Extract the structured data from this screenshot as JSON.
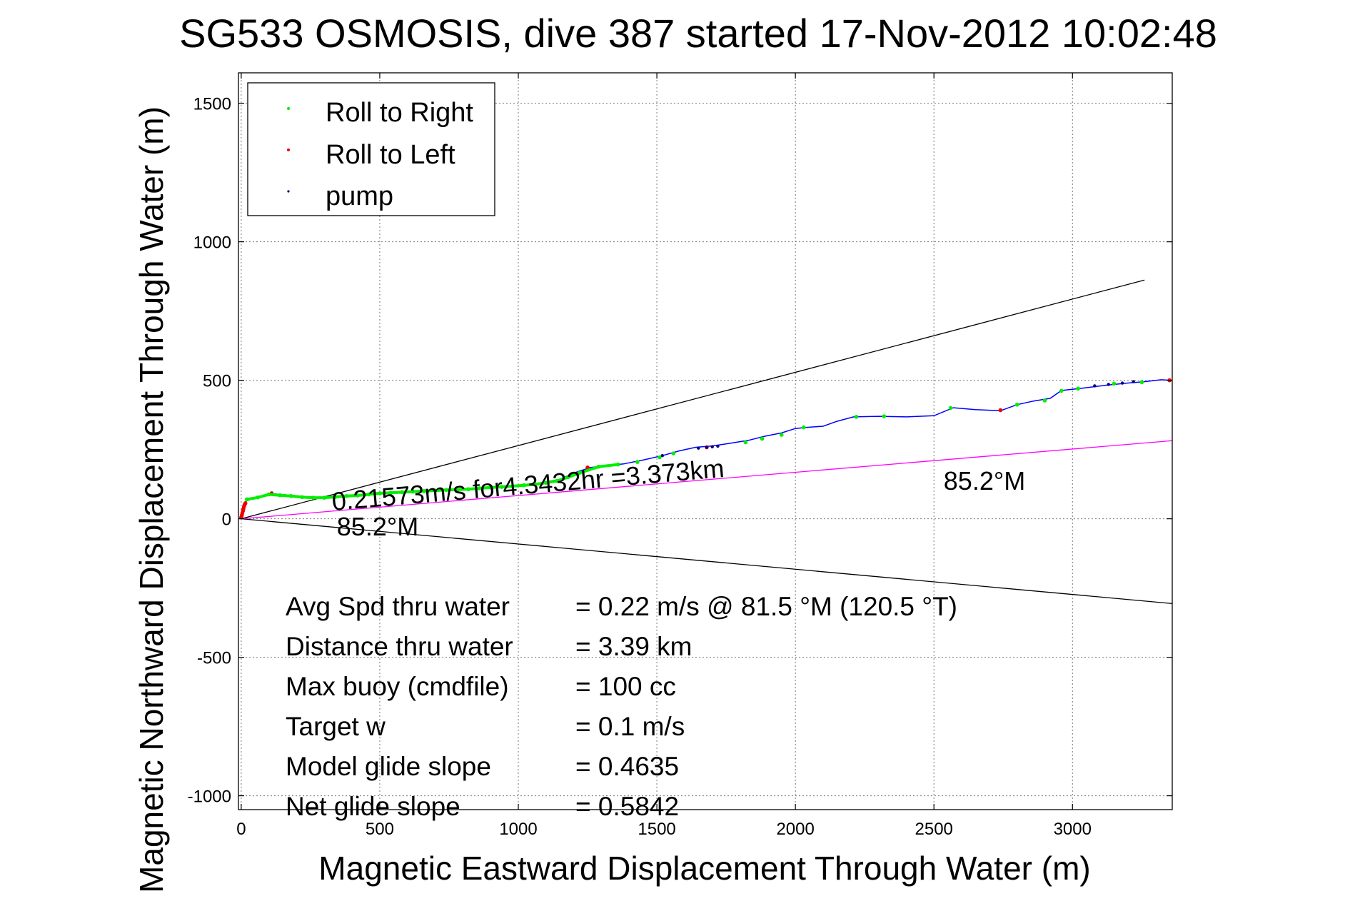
{
  "chart_data": {
    "type": "scatter",
    "title": "SG533 OSMOSIS, dive 387 started 17-Nov-2012 10:02:48",
    "xlabel": "Magnetic Eastward Displacement Through Water (m)",
    "ylabel": "Magnetic Northward Displacement Through Water (m)",
    "xlim": [
      -10,
      3360
    ],
    "ylim": [
      -1050,
      1610
    ],
    "xticks": [
      0,
      500,
      1000,
      1500,
      2000,
      2500,
      3000
    ],
    "yticks": [
      -1000,
      -500,
      0,
      500,
      1000,
      1500
    ],
    "grid": true,
    "legend_position": "top-left",
    "legend": [
      {
        "label": "Roll to Right",
        "color": "#00ee00"
      },
      {
        "label": "Roll to Left",
        "color": "#ee0000"
      },
      {
        "label": "pump",
        "color": "#000080"
      }
    ],
    "series": [
      {
        "name": "track",
        "color": "#0000ff",
        "x": [
          0,
          5,
          10,
          20,
          40,
          80,
          120,
          180,
          250,
          300,
          350,
          420,
          500,
          560,
          620,
          700,
          780,
          850,
          950,
          1050,
          1150,
          1200,
          1260,
          1320,
          1380,
          1450,
          1520,
          1580,
          1640,
          1700,
          1760,
          1830,
          1890,
          1950,
          2000,
          2040,
          2100,
          2150,
          2210,
          2300,
          2400,
          2500,
          2570,
          2650,
          2740,
          2800,
          2860,
          2920,
          2960,
          3040,
          3120,
          3200,
          3260,
          3320,
          3350
        ],
        "y": [
          0,
          40,
          55,
          65,
          72,
          80,
          90,
          85,
          78,
          75,
          80,
          85,
          92,
          95,
          98,
          102,
          105,
          110,
          116,
          125,
          142,
          165,
          185,
          192,
          198,
          212,
          228,
          245,
          258,
          263,
          272,
          283,
          298,
          310,
          326,
          330,
          334,
          352,
          368,
          370,
          368,
          372,
          401,
          394,
          390,
          412,
          425,
          435,
          463,
          472,
          482,
          490,
          495,
          502,
          500
        ]
      },
      {
        "name": "Roll to Right",
        "color": "#00ee00",
        "x": [
          20,
          60,
          100,
          140,
          180,
          220,
          260,
          300,
          340,
          380,
          420,
          460,
          500,
          540,
          580,
          620,
          660,
          700,
          740,
          780,
          820,
          860,
          900,
          940,
          980,
          1020,
          1060,
          1100,
          1140,
          1180,
          1220,
          1290,
          1360,
          1430,
          1510,
          1560,
          1820,
          1880,
          1950,
          2030,
          2220,
          2320,
          2560,
          2800,
          2900,
          2960,
          3020,
          3150,
          3250
        ],
        "y": [
          70,
          77,
          88,
          85,
          82,
          78,
          76,
          76,
          79,
          82,
          84,
          88,
          92,
          94,
          96,
          98,
          100,
          102,
          104,
          105,
          107,
          110,
          113,
          115,
          118,
          121,
          124,
          130,
          137,
          150,
          165,
          188,
          196,
          205,
          222,
          236,
          276,
          289,
          303,
          330,
          368,
          370,
          400,
          412,
          427,
          462,
          470,
          488,
          493
        ]
      },
      {
        "name": "Roll to Left",
        "color": "#ee0000",
        "x": [
          0,
          2,
          4,
          6,
          8,
          10,
          12,
          15,
          110,
          1250,
          1680,
          2740,
          3350
        ],
        "y": [
          5,
          12,
          20,
          28,
          36,
          44,
          50,
          56,
          92,
          185,
          258,
          392,
          500
        ]
      },
      {
        "name": "pump",
        "color": "#000080",
        "x": [
          1520,
          1650,
          1680,
          1700,
          1720,
          3080,
          3130,
          3180,
          3220
        ],
        "y": [
          228,
          255,
          258,
          260,
          262,
          480,
          485,
          490,
          495
        ]
      }
    ],
    "reference_lines": [
      {
        "color": "#000000",
        "x": [
          0,
          3260
        ],
        "y": [
          0,
          862
        ]
      },
      {
        "color": "#000000",
        "x": [
          0,
          3360
        ],
        "y": [
          0,
          -306
        ]
      },
      {
        "color": "#ff00ff",
        "x": [
          0,
          3360
        ],
        "y": [
          0,
          282
        ]
      }
    ],
    "annotations": [
      {
        "text": "0.21573m/s for4.3432hr =3.373km",
        "x": 330,
        "y": 30,
        "rotate": -4.9
      },
      {
        "text": "85.2°M",
        "x": 345,
        "y": -60
      },
      {
        "text": "85.2°M",
        "x": 2535,
        "y": 105
      }
    ],
    "stats": [
      {
        "label": "Avg Spd thru water",
        "value": "=  0.22 m/s @  81.5 °M (120.5 °T)"
      },
      {
        "label": "Distance thru water",
        "value": "=  3.39 km"
      },
      {
        "label": "Max buoy (cmdfile)",
        "value": "= 100 cc"
      },
      {
        "label": "Target w",
        "value": "= 0.1 m/s"
      },
      {
        "label": "Model glide slope",
        "value": "= 0.4635"
      },
      {
        "label": "Net glide slope",
        "value": "= 0.5842"
      }
    ]
  }
}
